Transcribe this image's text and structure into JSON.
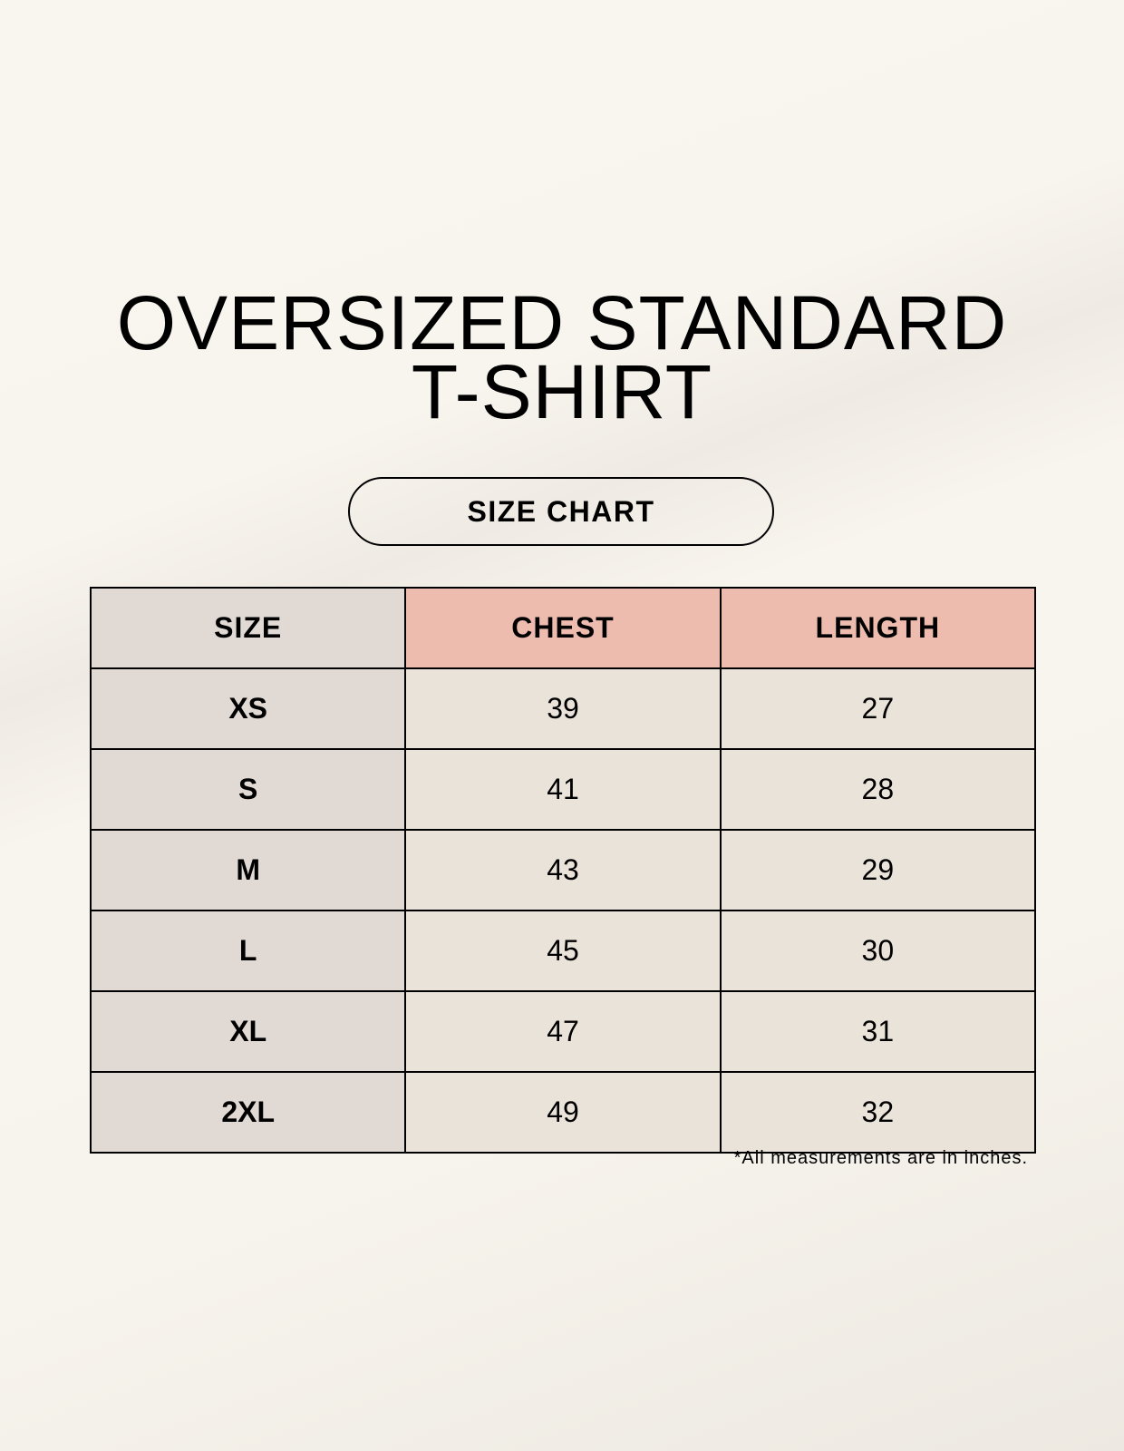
{
  "title": {
    "line1": "OVERSIZED STANDARD",
    "line2": "T-SHIRT"
  },
  "badge": "SIZE CHART",
  "table": {
    "headers": [
      "SIZE",
      "CHEST",
      "LENGTH"
    ],
    "rows": [
      [
        "XS",
        "39",
        "27"
      ],
      [
        "S",
        "41",
        "28"
      ],
      [
        "M",
        "43",
        "29"
      ],
      [
        "L",
        "45",
        "30"
      ],
      [
        "XL",
        "47",
        "31"
      ],
      [
        "2XL",
        "49",
        "32"
      ]
    ]
  },
  "footnote": "*All measurements are in inches.",
  "colors": {
    "size_column": "#e0d9d4",
    "header_accent": "#edbcaf",
    "value_cells": "#eae3da"
  }
}
